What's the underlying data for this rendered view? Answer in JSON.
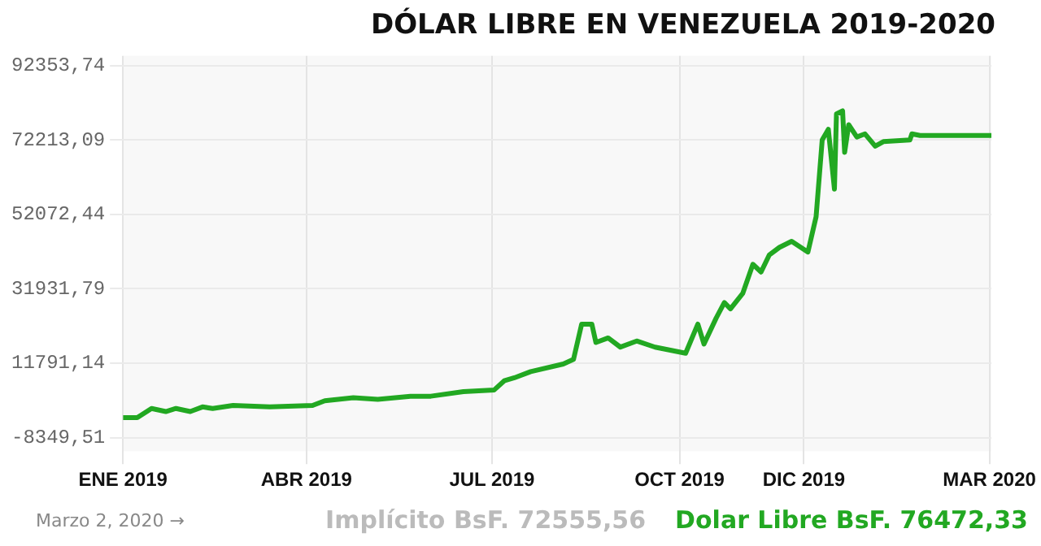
{
  "chart_data": {
    "type": "line",
    "title": "DÓLAR LIBRE EN VENEZUELA 2019-2020",
    "x": [
      "2019-01-01",
      "2019-01-08",
      "2019-01-15",
      "2019-01-22",
      "2019-01-27",
      "2019-02-03",
      "2019-02-09",
      "2019-02-14",
      "2019-02-24",
      "2019-03-14",
      "2019-04-04",
      "2019-04-10",
      "2019-04-24",
      "2019-05-06",
      "2019-05-22",
      "2019-06-01",
      "2019-06-17",
      "2019-07-02",
      "2019-07-07",
      "2019-07-12",
      "2019-07-20",
      "2019-08-05",
      "2019-08-10",
      "2019-08-14",
      "2019-08-19",
      "2019-08-21",
      "2019-08-27",
      "2019-09-02",
      "2019-09-10",
      "2019-09-19",
      "2019-10-04",
      "2019-10-10",
      "2019-10-13",
      "2019-10-19",
      "2019-10-23",
      "2019-10-26",
      "2019-11-01",
      "2019-11-06",
      "2019-11-10",
      "2019-11-14",
      "2019-11-19",
      "2019-11-25",
      "2019-12-03",
      "2019-12-07",
      "2019-12-10",
      "2019-12-13",
      "2019-12-16",
      "2019-12-17",
      "2019-12-20",
      "2019-12-21",
      "2019-12-23",
      "2019-12-27",
      "2019-12-31",
      "2020-01-05",
      "2020-01-09",
      "2020-01-22",
      "2020-01-23",
      "2020-01-27",
      "2020-03-02"
    ],
    "series": [
      {
        "color": "#22a822",
        "values": [
          -2950,
          -2950,
          -460,
          -1290,
          -460,
          -1290,
          -40,
          -460,
          370,
          -40,
          370,
          1620,
          2450,
          2030,
          2860,
          2860,
          4110,
          4520,
          7020,
          7850,
          9510,
          11580,
          12830,
          22380,
          22380,
          17400,
          18640,
          16150,
          17810,
          16150,
          14490,
          22380,
          16980,
          24040,
          28200,
          26530,
          30690,
          38580,
          36500,
          41070,
          43150,
          44810,
          41900,
          51450,
          72220,
          75130,
          58930,
          79280,
          80110,
          68900,
          76370,
          73050,
          73880,
          70560,
          71800,
          72220,
          73880,
          73460,
          73460
        ]
      }
    ],
    "xlim": [
      "2019-01-01",
      "2020-03-02"
    ],
    "xticks": [
      {
        "value": "2019-01-01",
        "label": "ENE 2019"
      },
      {
        "value": "2019-04-01",
        "label": "ABR 2019"
      },
      {
        "value": "2019-07-01",
        "label": "JUL 2019"
      },
      {
        "value": "2019-10-01",
        "label": "OCT 2019"
      },
      {
        "value": "2019-12-01",
        "label": "DIC 2019"
      },
      {
        "value": "2020-03-01",
        "label": "MAR 2020"
      }
    ],
    "ylim": [
      -12000,
      95000
    ],
    "yticks": [
      {
        "value": -8349.51,
        "label": "-8349,51"
      },
      {
        "value": 11791.14,
        "label": "11791,14"
      },
      {
        "value": 31931.79,
        "label": "31931,79"
      },
      {
        "value": 52072.44,
        "label": "52072,44"
      },
      {
        "value": 72213.09,
        "label": "72213,09"
      },
      {
        "value": 92353.74,
        "label": "92353,74"
      }
    ],
    "grid": true,
    "annotations": [
      "Marzo 2, 2020 →",
      "Implícito BsF. 72555,56",
      "Dolar Libre BsF. 76472,33"
    ]
  }
}
